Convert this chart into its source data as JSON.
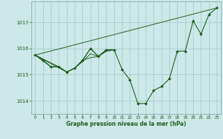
{
  "background_color": "#cce8e8",
  "grid_color": "#aacfcf",
  "line_color": "#1a5c1a",
  "text_color": "#1a5c1a",
  "xlabel": "Graphe pression niveau de la mer (hPa)",
  "xlim": [
    -0.5,
    23.5
  ],
  "ylim": [
    1013.5,
    1017.8
  ],
  "yticks": [
    1014,
    1015,
    1016,
    1017
  ],
  "xticks": [
    0,
    1,
    2,
    3,
    4,
    5,
    6,
    7,
    8,
    9,
    10,
    11,
    12,
    13,
    14,
    15,
    16,
    17,
    18,
    19,
    20,
    21,
    22,
    23
  ],
  "main_x": [
    0,
    1,
    2,
    3,
    4,
    5,
    6,
    7,
    8,
    9,
    10,
    11,
    12,
    13,
    14,
    15,
    16,
    17,
    18,
    19,
    20,
    21,
    22,
    23
  ],
  "main_y": [
    1015.75,
    1015.55,
    1015.3,
    1015.3,
    1015.1,
    1015.25,
    1015.55,
    1016.0,
    1015.7,
    1015.95,
    1015.95,
    1015.2,
    1014.8,
    1013.9,
    1013.9,
    1014.4,
    1014.55,
    1014.85,
    1015.9,
    1015.9,
    1017.05,
    1016.55,
    1017.3,
    1017.55
  ],
  "trend_x": [
    0,
    23
  ],
  "trend_y": [
    1015.75,
    1017.55
  ],
  "extra1_x": [
    0,
    4,
    5,
    6,
    7,
    8,
    9,
    10
  ],
  "extra1_y": [
    1015.75,
    1015.1,
    1015.25,
    1015.55,
    1016.0,
    1015.7,
    1015.95,
    1015.95
  ],
  "extra2_x": [
    0,
    3,
    4,
    5,
    6,
    7,
    8,
    9,
    10
  ],
  "extra2_y": [
    1015.75,
    1015.3,
    1015.1,
    1015.25,
    1015.55,
    1015.65,
    1015.7,
    1015.9,
    1015.95
  ],
  "extra3_x": [
    0,
    2,
    3,
    4,
    5,
    6,
    7,
    8,
    9,
    10
  ],
  "extra3_y": [
    1015.75,
    1015.3,
    1015.3,
    1015.1,
    1015.25,
    1015.5,
    1015.8,
    1015.7,
    1015.9,
    1015.95
  ]
}
